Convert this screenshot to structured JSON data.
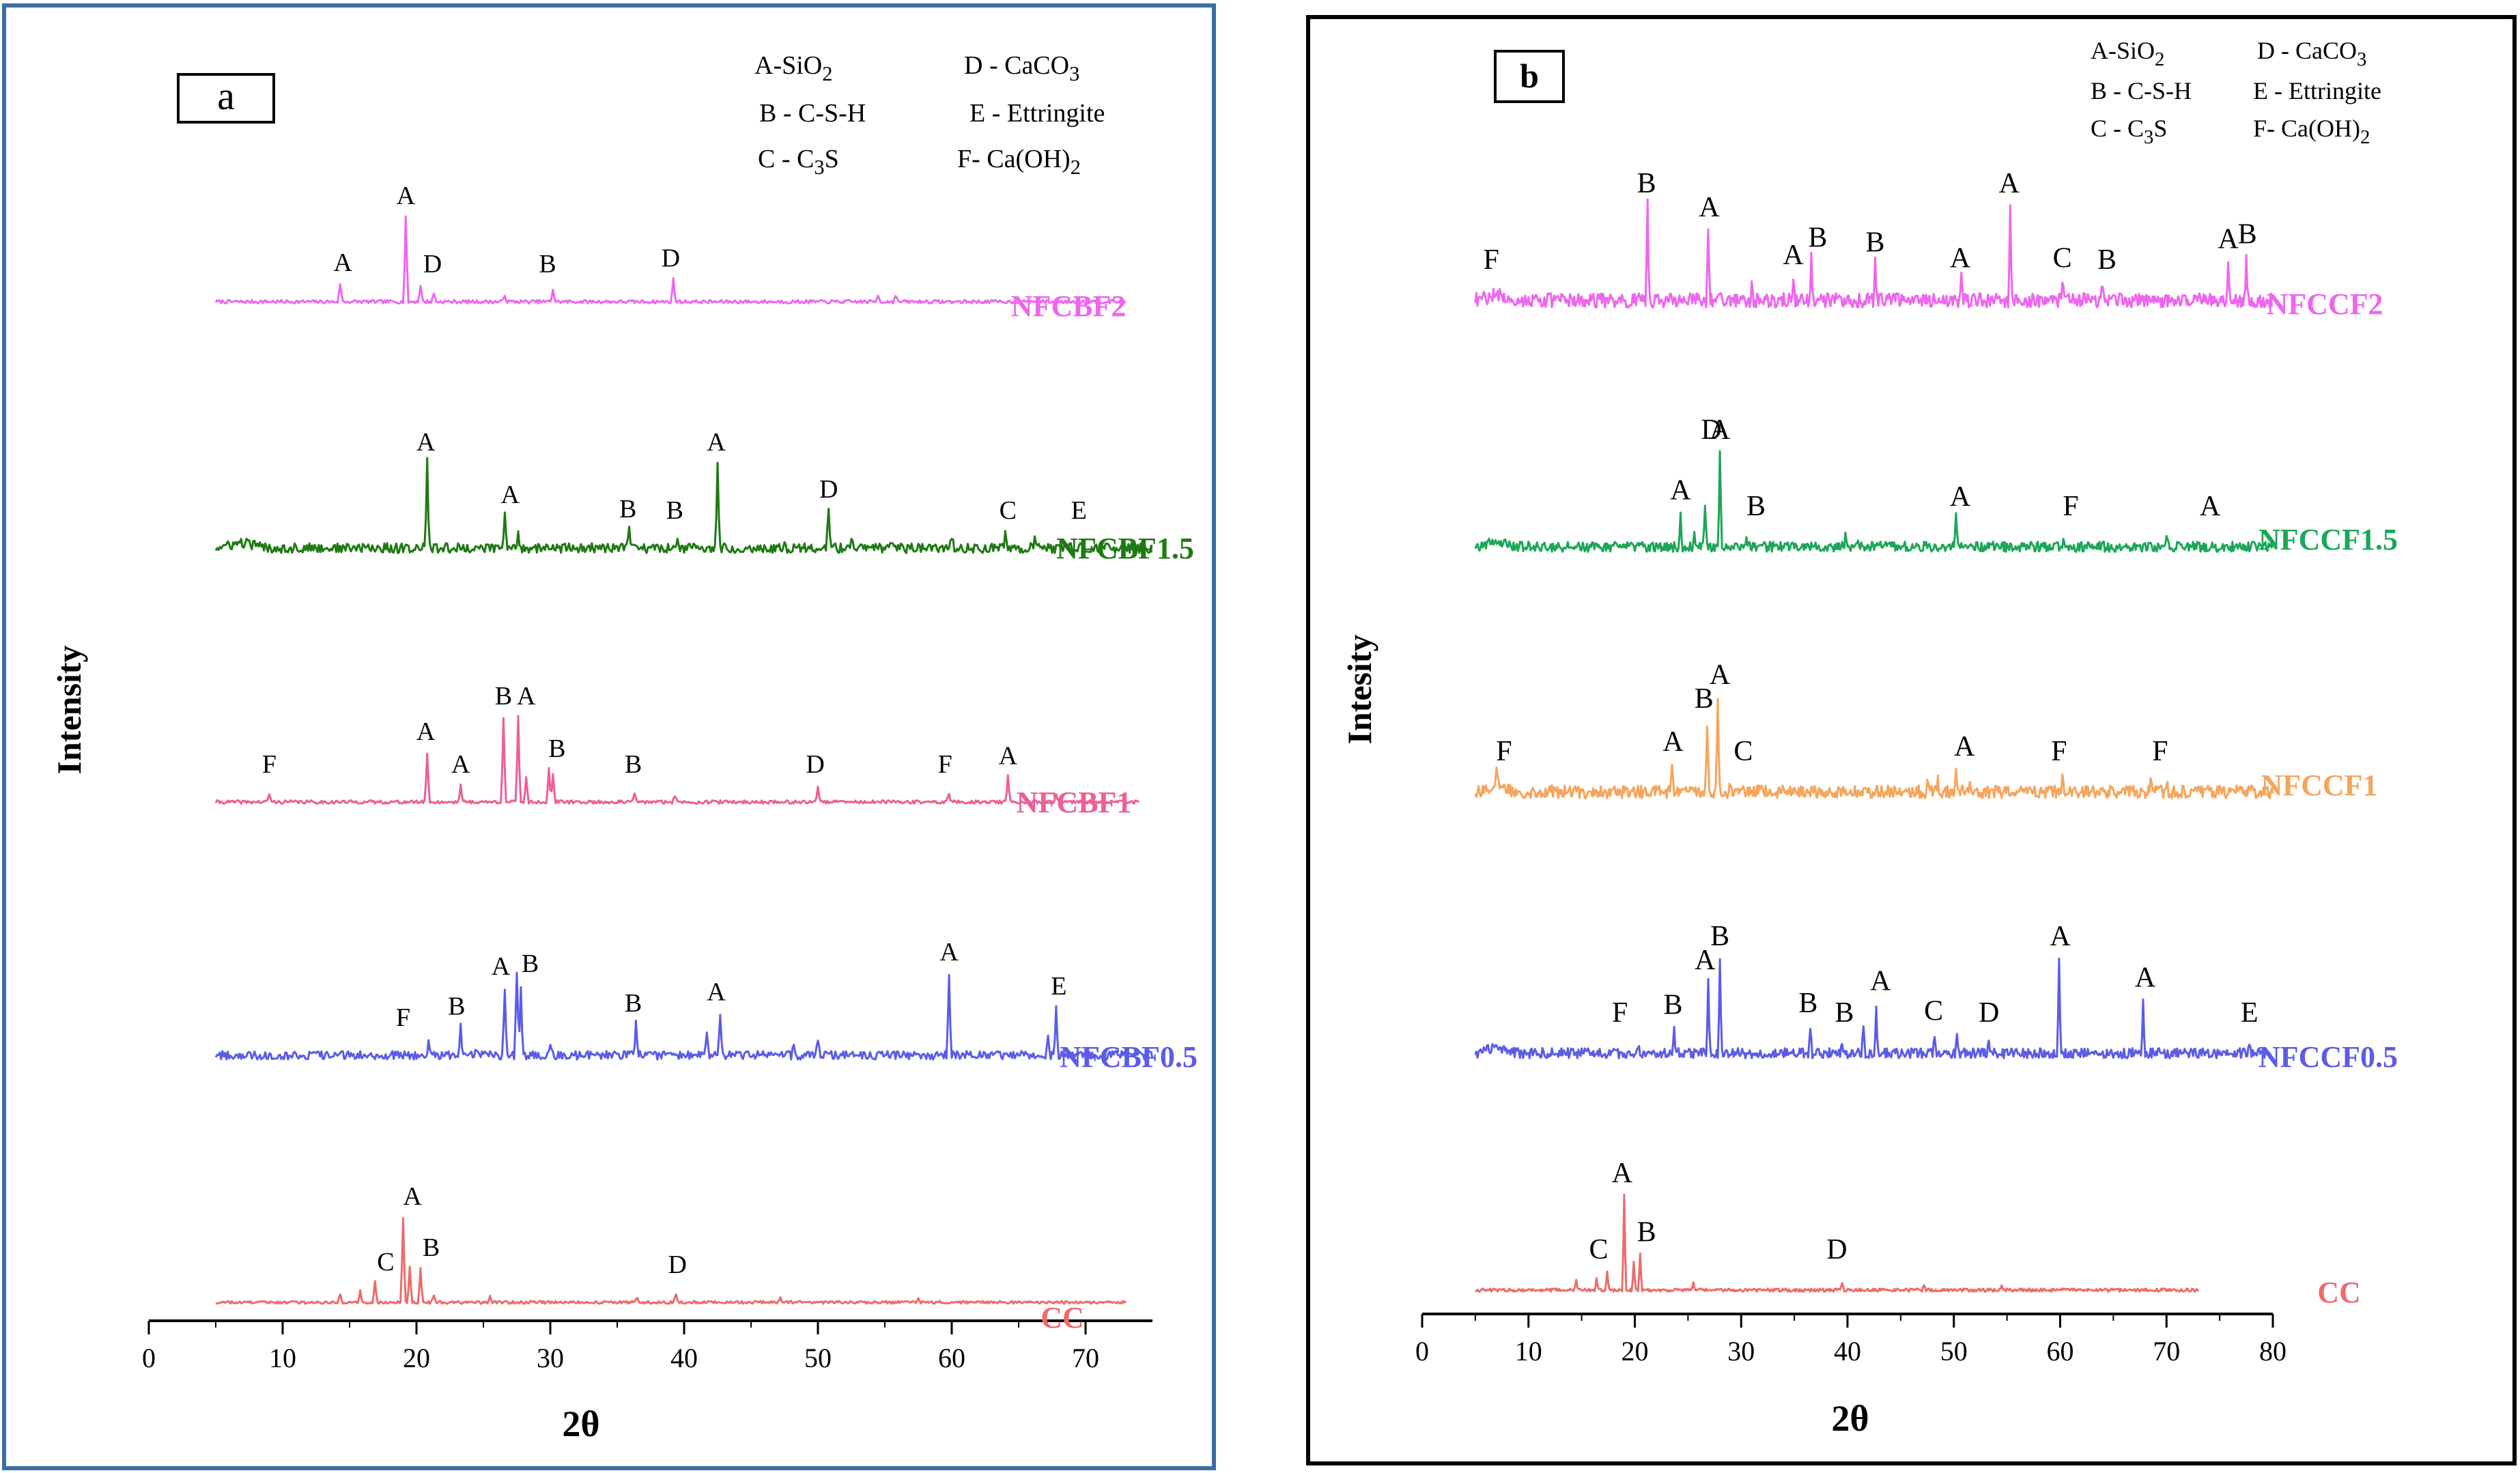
{
  "chart_data": [
    {
      "type": "line",
      "panel_label": "a",
      "xlabel": "2θ",
      "ylabel": "Intensity",
      "xlim": [
        0,
        75
      ],
      "xticks": [
        0,
        10,
        20,
        30,
        40,
        50,
        60,
        70
      ],
      "legend": [
        {
          "text": "A-SiO",
          "sub": "2",
          "after": ""
        },
        {
          "text": "D - CaCO",
          "sub": "3",
          "after": ""
        },
        {
          "text": "B - C-S-H",
          "sub": "",
          "after": ""
        },
        {
          "text": "E - Ettringite",
          "sub": "",
          "after": ""
        },
        {
          "text": "C - C",
          "sub": "3",
          "after": "S"
        },
        {
          "text": "F- Ca(OH)",
          "sub": "2",
          "after": ""
        }
      ],
      "series": [
        {
          "name": "NFCBF2",
          "color": "#ee66ee",
          "x_range": [
            5,
            73
          ],
          "noise": 0.12,
          "peaks": [
            [
              14.3,
              1.3
            ],
            [
              19.2,
              6.0
            ],
            [
              20.3,
              1.2
            ],
            [
              21.3,
              0.6
            ],
            [
              26.6,
              0.5
            ],
            [
              30.2,
              0.9
            ],
            [
              39.2,
              1.6
            ],
            [
              54.5,
              0.5
            ],
            [
              55.8,
              0.5
            ]
          ],
          "labels": [
            [
              "A",
              14.5
            ],
            [
              "A",
              19.2
            ],
            [
              "D",
              21.2
            ],
            [
              "B",
              29.8
            ],
            [
              "D",
              39.0
            ]
          ]
        },
        {
          "name": "NFCBF1.5",
          "color": "#1e7a12",
          "x_range": [
            5,
            75
          ],
          "noise": 0.35,
          "peaks": [
            [
              20.8,
              6.0
            ],
            [
              26.6,
              2.3
            ],
            [
              27.6,
              1.2
            ],
            [
              35.9,
              1.3
            ],
            [
              39.5,
              1.0
            ],
            [
              42.5,
              6.0
            ],
            [
              47.5,
              0.6
            ],
            [
              50.8,
              2.7
            ],
            [
              52.5,
              0.6
            ],
            [
              60.0,
              0.7
            ],
            [
              64.0,
              0.9
            ],
            [
              66.2,
              0.6
            ],
            [
              68.5,
              0.5
            ]
          ],
          "labels": [
            [
              "A",
              20.7
            ],
            [
              "A",
              27.0
            ],
            [
              "B",
              35.8
            ],
            [
              "B",
              39.3
            ],
            [
              "A",
              42.4
            ],
            [
              "D",
              50.8
            ],
            [
              "C",
              64.2
            ],
            [
              "E",
              69.5
            ]
          ]
        },
        {
          "name": "NFCBF1",
          "color": "#ec5f99",
          "x_range": [
            5,
            74
          ],
          "noise": 0.12,
          "peaks": [
            [
              9.0,
              0.6
            ],
            [
              20.8,
              3.5
            ],
            [
              23.3,
              1.2
            ],
            [
              26.5,
              6.0
            ],
            [
              27.6,
              6.0
            ],
            [
              28.2,
              1.8
            ],
            [
              29.9,
              2.3
            ],
            [
              30.2,
              2.0
            ],
            [
              36.3,
              0.6
            ],
            [
              39.3,
              0.5
            ],
            [
              50.0,
              1.2
            ],
            [
              59.8,
              0.6
            ],
            [
              64.2,
              1.8
            ],
            [
              67.8,
              0.5
            ]
          ],
          "labels": [
            [
              "F",
              9.0
            ],
            [
              "A",
              20.7
            ],
            [
              "A",
              23.3
            ],
            [
              "B",
              26.5
            ],
            [
              "A",
              28.2
            ],
            [
              "B",
              30.5
            ],
            [
              "B",
              36.2
            ],
            [
              "D",
              49.8
            ],
            [
              "F",
              59.5
            ],
            [
              "A",
              64.2
            ]
          ]
        },
        {
          "name": "NFCBF0.5",
          "color": "#5b5ce8",
          "x_range": [
            5,
            75
          ],
          "noise": 0.3,
          "peaks": [
            [
              20.9,
              0.8
            ],
            [
              23.3,
              2.0
            ],
            [
              24.5,
              0.6
            ],
            [
              26.6,
              4.8
            ],
            [
              27.5,
              6.0
            ],
            [
              27.8,
              5.0
            ],
            [
              30.0,
              0.9
            ],
            [
              36.4,
              2.2
            ],
            [
              41.7,
              1.8
            ],
            [
              42.7,
              3.0
            ],
            [
              48.2,
              0.9
            ],
            [
              50.0,
              0.9
            ],
            [
              59.8,
              5.8
            ],
            [
              67.8,
              3.4
            ],
            [
              67.2,
              1.2
            ]
          ],
          "labels": [
            [
              "F",
              19.0
            ],
            [
              "B",
              23.0
            ],
            [
              "A",
              26.3
            ],
            [
              "B",
              28.5
            ],
            [
              "B",
              36.2
            ],
            [
              "A",
              42.4
            ],
            [
              "A",
              59.8
            ],
            [
              "E",
              68.0
            ]
          ]
        },
        {
          "name": "CC",
          "color": "#ee6b6b",
          "x_range": [
            5,
            73
          ],
          "noise": 0.1,
          "peaks": [
            [
              14.3,
              0.6
            ],
            [
              15.8,
              0.8
            ],
            [
              16.9,
              1.4
            ],
            [
              19.0,
              6.0
            ],
            [
              19.5,
              2.5
            ],
            [
              20.3,
              2.4
            ],
            [
              21.3,
              0.5
            ],
            [
              25.5,
              0.5
            ],
            [
              36.5,
              0.3
            ],
            [
              39.4,
              0.6
            ],
            [
              47.2,
              0.3
            ],
            [
              57.5,
              0.3
            ]
          ],
          "labels": [
            [
              "C",
              17.7
            ],
            [
              "A",
              19.7
            ],
            [
              "B",
              21.1
            ],
            [
              "D",
              39.5
            ]
          ]
        }
      ]
    },
    {
      "type": "line",
      "panel_label": "b",
      "xlabel": "2θ",
      "ylabel": "Intesity",
      "xlim": [
        0,
        80
      ],
      "xticks": [
        0,
        10,
        20,
        30,
        40,
        50,
        60,
        70,
        80
      ],
      "legend": [
        {
          "text": "A-SiO",
          "sub": "2",
          "after": ""
        },
        {
          "text": "D - CaCO",
          "sub": "3",
          "after": ""
        },
        {
          "text": "B - C-S-H",
          "sub": "",
          "after": ""
        },
        {
          "text": "E - Ettringite",
          "sub": "",
          "after": ""
        },
        {
          "text": "C - C",
          "sub": "3",
          "after": "S"
        },
        {
          "text": "F- Ca(OH)",
          "sub": "2",
          "after": ""
        }
      ],
      "series": [
        {
          "name": "NFCCF2",
          "color": "#ee66ee",
          "x_range": [
            5,
            80
          ],
          "noise": 0.45,
          "peaks": [
            [
              21.2,
              6.0
            ],
            [
              26.9,
              4.5
            ],
            [
              28.0,
              0.8
            ],
            [
              31.0,
              1.0
            ],
            [
              34.9,
              1.5
            ],
            [
              36.6,
              2.6
            ],
            [
              42.6,
              2.3
            ],
            [
              50.7,
              1.3
            ],
            [
              55.3,
              6.0
            ],
            [
              60.2,
              1.3
            ],
            [
              64.0,
              1.2
            ],
            [
              75.8,
              2.5
            ],
            [
              77.5,
              2.8
            ]
          ],
          "labels": [
            [
              "F",
              6.5
            ],
            [
              "B",
              21.1
            ],
            [
              "A",
              27.0
            ],
            [
              "A",
              34.9
            ],
            [
              "B",
              37.2
            ],
            [
              "B",
              42.6
            ],
            [
              "A",
              50.6
            ],
            [
              "A",
              55.2
            ],
            [
              "C",
              60.2
            ],
            [
              "B",
              64.4
            ],
            [
              "A",
              75.8
            ],
            [
              "B",
              77.6
            ]
          ]
        },
        {
          "name": "NFCCF1.5",
          "color": "#1ca757",
          "x_range": [
            5,
            80
          ],
          "noise": 0.32,
          "peaks": [
            [
              24.3,
              2.2
            ],
            [
              25.6,
              1.2
            ],
            [
              26.6,
              2.8
            ],
            [
              28.0,
              6.0
            ],
            [
              30.5,
              0.8
            ],
            [
              39.8,
              0.6
            ],
            [
              41.0,
              0.5
            ],
            [
              50.2,
              1.8
            ],
            [
              60.3,
              0.5
            ],
            [
              70.0,
              0.4
            ]
          ],
          "labels": [
            [
              "A",
              24.3
            ],
            [
              "D",
              27.2
            ],
            [
              "A",
              28.0
            ],
            [
              "B",
              31.4
            ],
            [
              "A",
              50.6
            ],
            [
              "F",
              61.0
            ],
            [
              "A",
              74.1
            ]
          ]
        },
        {
          "name": "NFCCF1",
          "color": "#f6a55c",
          "x_range": [
            5,
            80
          ],
          "noise": 0.4,
          "peaks": [
            [
              7.0,
              0.8
            ],
            [
              23.5,
              1.8
            ],
            [
              26.8,
              4.5
            ],
            [
              27.8,
              6.0
            ],
            [
              29.0,
              0.6
            ],
            [
              47.5,
              0.8
            ],
            [
              48.5,
              0.8
            ],
            [
              50.2,
              1.5
            ],
            [
              51.5,
              0.9
            ],
            [
              60.2,
              0.8
            ],
            [
              68.5,
              0.9
            ],
            [
              70.0,
              0.8
            ]
          ],
          "labels": [
            [
              "F",
              7.7
            ],
            [
              "A",
              23.6
            ],
            [
              "B",
              26.5
            ],
            [
              "A",
              28.0
            ],
            [
              "C",
              30.2
            ],
            [
              "A",
              51.0
            ],
            [
              "F",
              59.9
            ],
            [
              "F",
              69.4
            ]
          ]
        },
        {
          "name": "NFCCF0.5",
          "color": "#5b5ce8",
          "x_range": [
            5,
            80
          ],
          "noise": 0.32,
          "peaks": [
            [
              20.3,
              0.6
            ],
            [
              23.7,
              1.7
            ],
            [
              26.9,
              4.5
            ],
            [
              28.0,
              6.0
            ],
            [
              36.5,
              1.8
            ],
            [
              39.5,
              0.6
            ],
            [
              41.5,
              2.0
            ],
            [
              42.7,
              3.2
            ],
            [
              48.2,
              1.3
            ],
            [
              50.3,
              1.0
            ],
            [
              53.3,
              0.7
            ],
            [
              59.9,
              6.0
            ],
            [
              67.8,
              3.4
            ],
            [
              77.8,
              0.4
            ]
          ],
          "labels": [
            [
              "F",
              18.6
            ],
            [
              "B",
              23.6
            ],
            [
              "A",
              26.6
            ],
            [
              "B",
              28.0
            ],
            [
              "B",
              36.3
            ],
            [
              "B",
              39.7
            ],
            [
              "A",
              43.1
            ],
            [
              "C",
              48.1
            ],
            [
              "D",
              53.3
            ],
            [
              "A",
              60.0
            ],
            [
              "A",
              68.0
            ],
            [
              "E",
              77.8
            ]
          ]
        },
        {
          "name": "CC",
          "color": "#ee6b6b",
          "x_range": [
            5,
            73
          ],
          "noise": 0.1,
          "peaks": [
            [
              14.5,
              0.6
            ],
            [
              16.4,
              0.8
            ],
            [
              17.4,
              1.2
            ],
            [
              19.0,
              6.0
            ],
            [
              19.9,
              1.8
            ],
            [
              20.5,
              2.3
            ],
            [
              25.5,
              0.5
            ],
            [
              39.5,
              0.5
            ],
            [
              47.2,
              0.3
            ],
            [
              54.5,
              0.3
            ]
          ],
          "labels": [
            [
              "C",
              16.6
            ],
            [
              "A",
              18.8
            ],
            [
              "B",
              21.1
            ],
            [
              "D",
              39.0
            ]
          ]
        }
      ]
    }
  ]
}
